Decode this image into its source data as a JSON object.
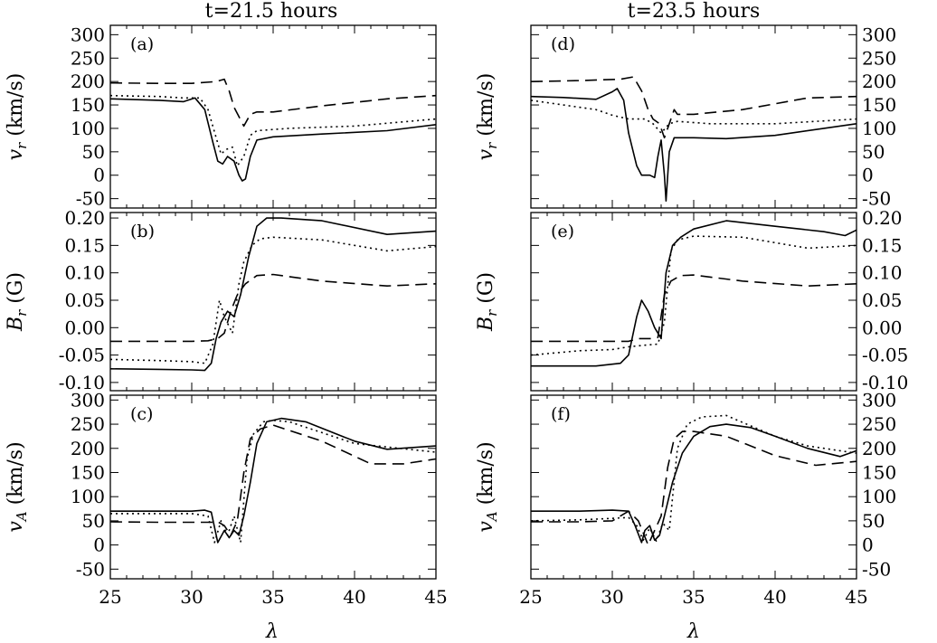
{
  "titles": {
    "left": "t=21.5 hours",
    "right": "t=23.5 hours"
  },
  "xlabel": "λ",
  "ylabels": {
    "vr": {
      "sym": "v",
      "sub": "r",
      "unit": " (km/s)"
    },
    "br": {
      "sym": "B",
      "sub": "r",
      "unit": " (G)"
    },
    "va": {
      "sym": "v",
      "sub": "A",
      "unit": " (km/s)"
    }
  },
  "chart_data": [
    {
      "panel": "a",
      "type": "line",
      "ylabel": "v_r (km/s)",
      "xlim": [
        25,
        45
      ],
      "ylim": [
        -70,
        320
      ],
      "xticks": [
        25,
        30,
        35,
        40,
        45
      ],
      "yticks": [
        -50,
        0,
        50,
        100,
        150,
        200,
        250,
        300
      ],
      "series": [
        {
          "name": "solid",
          "style": "solid",
          "x": [
            25,
            28,
            29.5,
            30.2,
            30.8,
            31.3,
            31.6,
            31.9,
            32.2,
            32.6,
            32.9,
            33.1,
            33.3,
            33.6,
            34,
            35,
            38,
            42,
            45
          ],
          "y": [
            163,
            160,
            157,
            165,
            140,
            70,
            30,
            24,
            40,
            30,
            0,
            -12,
            -8,
            40,
            75,
            82,
            88,
            95,
            108
          ]
        },
        {
          "name": "dotted",
          "style": "dotted",
          "x": [
            25,
            28,
            29.5,
            30.5,
            31,
            31.5,
            31.8,
            32.1,
            32.5,
            32.8,
            33.2,
            33.6,
            34,
            36,
            40,
            45
          ],
          "y": [
            170,
            168,
            165,
            165,
            140,
            80,
            45,
            55,
            60,
            20,
            40,
            85,
            95,
            100,
            105,
            120
          ]
        },
        {
          "name": "dashed",
          "style": "dashed",
          "x": [
            25,
            28,
            30,
            31.5,
            32,
            32.3,
            32.6,
            32.9,
            33.2,
            33.6,
            34,
            35,
            38,
            42,
            45
          ],
          "y": [
            197,
            196,
            196,
            200,
            205,
            180,
            145,
            125,
            105,
            130,
            135,
            135,
            148,
            163,
            170
          ]
        }
      ]
    },
    {
      "panel": "b",
      "type": "line",
      "ylabel": "B_r (G)",
      "xlim": [
        25,
        45
      ],
      "ylim": [
        -0.115,
        0.21
      ],
      "xticks": [
        25,
        30,
        35,
        40,
        45
      ],
      "yticks": [
        -0.1,
        -0.05,
        0.0,
        0.05,
        0.1,
        0.15,
        0.2
      ],
      "series": [
        {
          "name": "solid",
          "style": "solid",
          "x": [
            25,
            28,
            30,
            30.8,
            31.2,
            31.5,
            31.8,
            32.2,
            32.6,
            33,
            33.5,
            34,
            34.6,
            35.5,
            38,
            42,
            45
          ],
          "y": [
            -0.075,
            -0.076,
            -0.077,
            -0.078,
            -0.065,
            -0.02,
            0.01,
            0.03,
            0.02,
            0.06,
            0.13,
            0.185,
            0.2,
            0.2,
            0.195,
            0.17,
            0.176
          ]
        },
        {
          "name": "dotted",
          "style": "dotted",
          "x": [
            25,
            28,
            30,
            30.8,
            31.3,
            31.7,
            32,
            32.5,
            32.9,
            33.2,
            33.7,
            34.2,
            35,
            38,
            42,
            45
          ],
          "y": [
            -0.058,
            -0.06,
            -0.062,
            -0.065,
            -0.03,
            0.05,
            0.02,
            -0.01,
            0.08,
            0.12,
            0.15,
            0.162,
            0.165,
            0.16,
            0.14,
            0.148
          ]
        },
        {
          "name": "dashed",
          "style": "dashed",
          "x": [
            25,
            28,
            30,
            31,
            31.6,
            32,
            32.4,
            32.8,
            33.3,
            34,
            35,
            38,
            42,
            45
          ],
          "y": [
            -0.025,
            -0.025,
            -0.025,
            -0.024,
            -0.02,
            -0.01,
            0.03,
            0.06,
            0.08,
            0.095,
            0.097,
            0.085,
            0.076,
            0.08
          ]
        }
      ]
    },
    {
      "panel": "c",
      "type": "line",
      "ylabel": "v_A (km/s)",
      "xlim": [
        25,
        45
      ],
      "ylim": [
        -70,
        310
      ],
      "xticks": [
        25,
        30,
        35,
        40,
        45
      ],
      "yticks": [
        -50,
        0,
        50,
        100,
        150,
        200,
        250,
        300
      ],
      "series": [
        {
          "name": "solid",
          "style": "solid",
          "x": [
            25,
            28,
            30,
            30.8,
            31.2,
            31.6,
            32,
            32.3,
            32.6,
            32.9,
            33.2,
            33.6,
            34,
            34.6,
            35.5,
            37,
            40,
            42,
            45
          ],
          "y": [
            70,
            70,
            70,
            72,
            68,
            5,
            30,
            15,
            30,
            20,
            60,
            130,
            210,
            255,
            262,
            255,
            215,
            198,
            205
          ]
        },
        {
          "name": "dotted",
          "style": "dotted",
          "x": [
            25,
            28,
            30,
            31,
            31.4,
            31.8,
            32.2,
            32.6,
            33,
            33.4,
            33.8,
            34.4,
            35,
            36,
            40,
            45
          ],
          "y": [
            65,
            65,
            65,
            60,
            5,
            50,
            20,
            60,
            5,
            180,
            230,
            255,
            258,
            255,
            210,
            192
          ]
        },
        {
          "name": "dashed",
          "style": "dashed",
          "x": [
            25,
            28,
            30.5,
            31.2,
            31.6,
            32,
            32.4,
            32.8,
            33.2,
            33.6,
            34.2,
            35,
            38,
            41,
            43,
            45
          ],
          "y": [
            48,
            47,
            47,
            47,
            48,
            40,
            20,
            50,
            150,
            220,
            240,
            248,
            215,
            168,
            168,
            178
          ]
        }
      ]
    },
    {
      "panel": "d",
      "type": "line",
      "ylabel": "v_r (km/s)",
      "xlim": [
        25,
        45
      ],
      "ylim": [
        -70,
        320
      ],
      "xticks": [
        25,
        30,
        35,
        40,
        45
      ],
      "yticks": [
        -50,
        0,
        50,
        100,
        150,
        200,
        250,
        300
      ],
      "series": [
        {
          "name": "solid",
          "style": "solid",
          "x": [
            25,
            27,
            29,
            30,
            30.3,
            30.7,
            31,
            31.5,
            31.8,
            32.3,
            32.6,
            32.8,
            33,
            33.2,
            33.3,
            33.5,
            33.8,
            35,
            37,
            40,
            43,
            45
          ],
          "y": [
            168,
            166,
            162,
            178,
            185,
            160,
            90,
            20,
            0,
            0,
            -5,
            40,
            75,
            0,
            -55,
            50,
            80,
            80,
            78,
            85,
            100,
            110
          ]
        },
        {
          "name": "dotted",
          "style": "dotted",
          "x": [
            25,
            27,
            29,
            30,
            31,
            32,
            32.5,
            33,
            33.5,
            34,
            36,
            40,
            45
          ],
          "y": [
            160,
            150,
            140,
            128,
            120,
            120,
            110,
            90,
            110,
            115,
            110,
            110,
            120
          ]
        },
        {
          "name": "dashed",
          "style": "dashed",
          "x": [
            25,
            28,
            30.5,
            31.3,
            31.8,
            32.2,
            32.5,
            32.9,
            33.2,
            33.5,
            33.8,
            34,
            35,
            38,
            42,
            45
          ],
          "y": [
            200,
            202,
            205,
            210,
            180,
            140,
            120,
            110,
            80,
            110,
            140,
            130,
            130,
            140,
            165,
            168
          ]
        }
      ]
    },
    {
      "panel": "e",
      "type": "line",
      "ylabel": "B_r (G)",
      "xlim": [
        25,
        45
      ],
      "ylim": [
        -0.115,
        0.21
      ],
      "xticks": [
        25,
        30,
        35,
        40,
        45
      ],
      "yticks": [
        -0.1,
        -0.05,
        0.0,
        0.05,
        0.1,
        0.15,
        0.2
      ],
      "series": [
        {
          "name": "solid",
          "style": "solid",
          "x": [
            25,
            27,
            29,
            30.5,
            31,
            31.5,
            31.8,
            32.2,
            32.6,
            33,
            33.3,
            33.7,
            34.2,
            35,
            37,
            40,
            43,
            44.3,
            45
          ],
          "y": [
            -0.07,
            -0.07,
            -0.07,
            -0.065,
            -0.05,
            0.02,
            0.05,
            0.03,
            0.0,
            -0.02,
            0.1,
            0.15,
            0.165,
            0.18,
            0.195,
            0.185,
            0.175,
            0.168,
            0.178
          ]
        },
        {
          "name": "dotted",
          "style": "dotted",
          "x": [
            25,
            28,
            30,
            31,
            32,
            32.8,
            33.2,
            33.6,
            34,
            35,
            38,
            42,
            45
          ],
          "y": [
            -0.05,
            -0.042,
            -0.04,
            -0.035,
            -0.032,
            -0.03,
            0.01,
            0.14,
            0.16,
            0.167,
            0.165,
            0.145,
            0.15
          ]
        },
        {
          "name": "dashed",
          "style": "dashed",
          "x": [
            25,
            28,
            30,
            31,
            31.6,
            32,
            32.4,
            32.8,
            33.2,
            33.6,
            34.2,
            35,
            38,
            42,
            45
          ],
          "y": [
            -0.025,
            -0.025,
            -0.025,
            -0.025,
            -0.02,
            -0.02,
            -0.02,
            -0.018,
            0.06,
            0.085,
            0.095,
            0.096,
            0.085,
            0.076,
            0.08
          ]
        }
      ]
    },
    {
      "panel": "f",
      "type": "line",
      "ylabel": "v_A (km/s)",
      "xlim": [
        25,
        45
      ],
      "ylim": [
        -70,
        310
      ],
      "xticks": [
        25,
        30,
        35,
        40,
        45
      ],
      "yticks": [
        -50,
        0,
        50,
        100,
        150,
        200,
        250,
        300
      ],
      "series": [
        {
          "name": "solid",
          "style": "solid",
          "x": [
            25,
            28,
            30,
            31,
            31.4,
            31.8,
            32,
            32.3,
            32.6,
            32.9,
            33.2,
            33.7,
            34.3,
            35,
            36,
            37,
            38.5,
            40,
            42,
            44,
            45
          ],
          "y": [
            70,
            70,
            72,
            70,
            40,
            5,
            30,
            40,
            10,
            20,
            60,
            130,
            190,
            225,
            245,
            250,
            243,
            225,
            200,
            183,
            195
          ]
        },
        {
          "name": "dotted",
          "style": "dotted",
          "x": [
            25,
            28,
            30,
            31,
            31.5,
            31.9,
            32.3,
            32.7,
            33.1,
            33.5,
            34,
            34.6,
            35.5,
            37,
            40,
            42,
            45
          ],
          "y": [
            50,
            52,
            55,
            57,
            40,
            10,
            35,
            8,
            45,
            30,
            200,
            250,
            265,
            268,
            225,
            205,
            190
          ]
        },
        {
          "name": "dashed",
          "style": "dashed",
          "x": [
            25,
            28,
            30,
            31,
            31.6,
            32.2,
            32.6,
            33,
            33.4,
            33.8,
            34.3,
            35,
            37,
            40,
            42.5,
            45
          ],
          "y": [
            48,
            48,
            50,
            70,
            50,
            0,
            30,
            60,
            160,
            220,
            235,
            235,
            225,
            185,
            165,
            173
          ]
        }
      ]
    }
  ]
}
